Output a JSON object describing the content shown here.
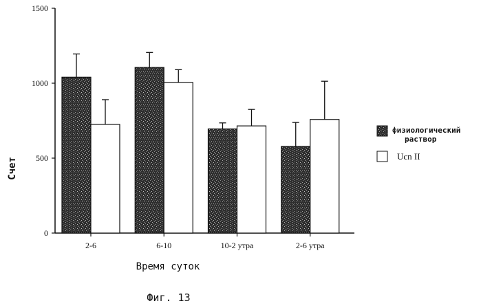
{
  "chart_data": {
    "type": "bar",
    "categories": [
      "2-6",
      "6-10",
      "10-2 утра",
      "2-6 утра"
    ],
    "series": [
      {
        "name": "физиологический раствор",
        "values": [
          1040,
          1105,
          695,
          578
        ],
        "errors": [
          155,
          100,
          40,
          160
        ],
        "color": "#3a3a3a",
        "fill": "speckled"
      },
      {
        "name": "Ucn II",
        "values": [
          725,
          1005,
          715,
          758
        ],
        "errors": [
          165,
          85,
          110,
          255
        ],
        "color": "#ffffff",
        "fill": "open"
      }
    ],
    "ylim": [
      0,
      1500
    ],
    "yticks": [
      "0",
      "500",
      "1000",
      "1500"
    ],
    "xlabel": "Время суток",
    "ylabel": "Счет",
    "legend": {
      "position": "right",
      "labels": [
        "физиологический раствор",
        "Ucn II"
      ]
    },
    "grid": false
  },
  "caption": "Фиг. 13"
}
